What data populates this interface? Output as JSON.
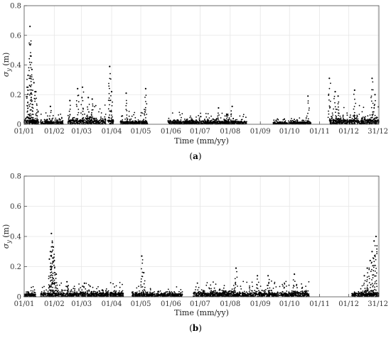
{
  "chart_data": [
    {
      "type": "scatter",
      "panel_label": "a",
      "xlabel": "Time (mm/yy)",
      "ylabel_symbol": "σ",
      "ylabel_subscript": "y",
      "ylabel_unit": "(m)",
      "ylim": [
        0,
        0.8
      ],
      "yticks": [
        "0",
        "0.2",
        "0.4",
        "0.6",
        "0.8"
      ],
      "xlim": [
        0,
        365
      ],
      "xticks": [
        {
          "label": "01/01",
          "day": 0
        },
        {
          "label": "01/02",
          "day": 31
        },
        {
          "label": "01/03",
          "day": 59
        },
        {
          "label": "01/04",
          "day": 90
        },
        {
          "label": "01/05",
          "day": 120
        },
        {
          "label": "01/06",
          "day": 151
        },
        {
          "label": "01/07",
          "day": 181
        },
        {
          "label": "01/08",
          "day": 212
        },
        {
          "label": "01/09",
          "day": 243
        },
        {
          "label": "01/10",
          "day": 273
        },
        {
          "label": "01/11",
          "day": 304
        },
        {
          "label": "01/12",
          "day": 334
        },
        {
          "label": "31/12",
          "day": 364
        }
      ],
      "grid": true,
      "marker_color": "#000000",
      "segments": [
        {
          "start": 0,
          "end": 15,
          "base": 0.03,
          "spike": 0.18
        },
        {
          "start": 17,
          "end": 40,
          "base": 0.02,
          "spike": 0.06
        },
        {
          "start": 45,
          "end": 84,
          "base": 0.03,
          "spike": 0.12
        },
        {
          "start": 86,
          "end": 92,
          "base": 0.03,
          "spike": 0.16
        },
        {
          "start": 99,
          "end": 127,
          "base": 0.02,
          "spike": 0.08
        },
        {
          "start": 148,
          "end": 229,
          "base": 0.02,
          "spike": 0.06
        },
        {
          "start": 256,
          "end": 271,
          "base": 0.01,
          "spike": 0.03
        },
        {
          "start": 272,
          "end": 295,
          "base": 0.015,
          "spike": 0.03
        },
        {
          "start": 314,
          "end": 365,
          "base": 0.03,
          "spike": 0.1
        }
      ],
      "peaks": [
        {
          "day": 6,
          "value": 0.66
        },
        {
          "day": 7,
          "value": 0.46
        },
        {
          "day": 8,
          "value": 0.37
        },
        {
          "day": 4,
          "value": 0.33
        },
        {
          "day": 10,
          "value": 0.28
        },
        {
          "day": 3,
          "value": 0.25
        },
        {
          "day": 12,
          "value": 0.22
        },
        {
          "day": 27,
          "value": 0.12
        },
        {
          "day": 47,
          "value": 0.16
        },
        {
          "day": 55,
          "value": 0.24
        },
        {
          "day": 60,
          "value": 0.25
        },
        {
          "day": 66,
          "value": 0.18
        },
        {
          "day": 70,
          "value": 0.17
        },
        {
          "day": 88,
          "value": 0.39
        },
        {
          "day": 90,
          "value": 0.22
        },
        {
          "day": 105,
          "value": 0.21
        },
        {
          "day": 125,
          "value": 0.24
        },
        {
          "day": 200,
          "value": 0.11
        },
        {
          "day": 214,
          "value": 0.12
        },
        {
          "day": 292,
          "value": 0.19
        },
        {
          "day": 314,
          "value": 0.31
        },
        {
          "day": 320,
          "value": 0.22
        },
        {
          "day": 323,
          "value": 0.19
        },
        {
          "day": 340,
          "value": 0.23
        },
        {
          "day": 358,
          "value": 0.31
        },
        {
          "day": 361,
          "value": 0.2
        }
      ]
    },
    {
      "type": "scatter",
      "panel_label": "b",
      "xlabel": "Time (mm/yy)",
      "ylabel_symbol": "σ",
      "ylabel_subscript": "y",
      "ylabel_unit": "(m)",
      "ylim": [
        0,
        0.8
      ],
      "yticks": [
        "0",
        "0.2",
        "0.4",
        "0.6",
        "0.8"
      ],
      "xlim": [
        0,
        365
      ],
      "xticks": [
        {
          "label": "01/01",
          "day": 0
        },
        {
          "label": "01/02",
          "day": 31
        },
        {
          "label": "01/03",
          "day": 59
        },
        {
          "label": "01/04",
          "day": 90
        },
        {
          "label": "01/05",
          "day": 120
        },
        {
          "label": "01/06",
          "day": 151
        },
        {
          "label": "01/07",
          "day": 181
        },
        {
          "label": "01/08",
          "day": 212
        },
        {
          "label": "01/09",
          "day": 243
        },
        {
          "label": "01/10",
          "day": 273
        },
        {
          "label": "01/11",
          "day": 304
        },
        {
          "label": "01/12",
          "day": 334
        },
        {
          "label": "31/12",
          "day": 364
        }
      ],
      "grid": true,
      "marker_color": "#000000",
      "segments": [
        {
          "start": 0,
          "end": 12,
          "base": 0.02,
          "spike": 0.05
        },
        {
          "start": 17,
          "end": 102,
          "base": 0.025,
          "spike": 0.07
        },
        {
          "start": 111,
          "end": 163,
          "base": 0.02,
          "spike": 0.05
        },
        {
          "start": 174,
          "end": 293,
          "base": 0.025,
          "spike": 0.08
        },
        {
          "start": 337,
          "end": 365,
          "base": 0.025,
          "spike": 0.06
        }
      ],
      "peaks": [
        {
          "day": 28,
          "value": 0.42
        },
        {
          "day": 29,
          "value": 0.36
        },
        {
          "day": 30,
          "value": 0.33
        },
        {
          "day": 27,
          "value": 0.3
        },
        {
          "day": 26,
          "value": 0.25
        },
        {
          "day": 31,
          "value": 0.24
        },
        {
          "day": 33,
          "value": 0.15
        },
        {
          "day": 44,
          "value": 0.1
        },
        {
          "day": 62,
          "value": 0.09
        },
        {
          "day": 121,
          "value": 0.27
        },
        {
          "day": 123,
          "value": 0.16
        },
        {
          "day": 218,
          "value": 0.19
        },
        {
          "day": 240,
          "value": 0.14
        },
        {
          "day": 251,
          "value": 0.14
        },
        {
          "day": 278,
          "value": 0.15
        },
        {
          "day": 362,
          "value": 0.4
        },
        {
          "day": 360,
          "value": 0.37
        },
        {
          "day": 358,
          "value": 0.3
        },
        {
          "day": 356,
          "value": 0.24
        },
        {
          "day": 353,
          "value": 0.19
        },
        {
          "day": 350,
          "value": 0.14
        }
      ]
    }
  ]
}
